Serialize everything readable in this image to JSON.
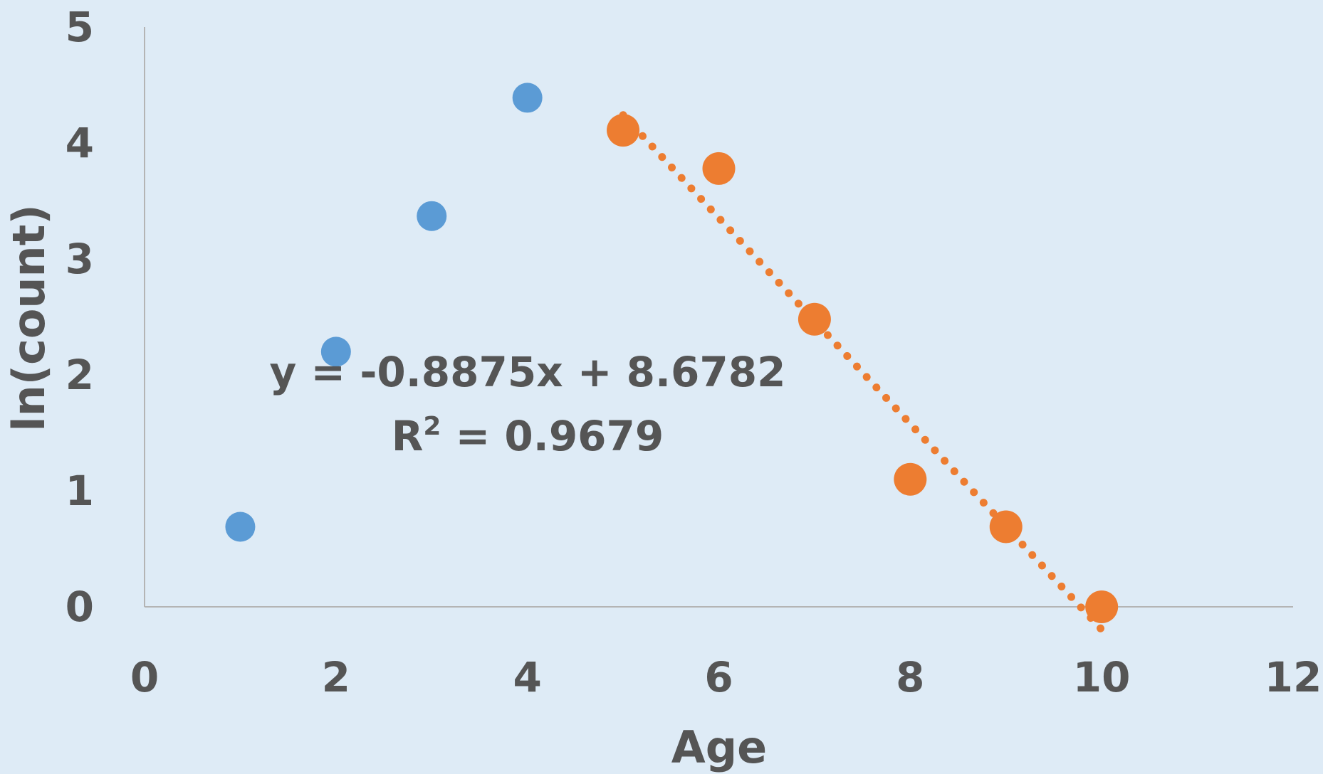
{
  "chart_data": {
    "type": "scatter",
    "xlabel": "Age",
    "ylabel": "ln(count)",
    "xlim": [
      0,
      12
    ],
    "ylim": [
      0,
      5
    ],
    "xticks": [
      "0",
      "2",
      "4",
      "6",
      "8",
      "10",
      "12"
    ],
    "yticks": [
      "0",
      "1",
      "2",
      "3",
      "4",
      "5"
    ],
    "grid": false,
    "series": [
      {
        "color": "#5b9bd5",
        "x": [
          1,
          2,
          3,
          4
        ],
        "y": [
          0.69,
          2.2,
          3.37,
          4.39
        ]
      },
      {
        "color": "#ed7d31",
        "x": [
          5,
          6,
          7,
          8,
          9,
          10
        ],
        "y": [
          4.11,
          3.78,
          2.48,
          1.1,
          0.69,
          0.0
        ]
      }
    ],
    "trendline": {
      "series_index": 1,
      "style": "dotted",
      "color": "#ed7d31",
      "slope": -0.8875,
      "intercept": 8.6782,
      "x_range": [
        5,
        10
      ],
      "equation_line1": "y = -0.8875x + 8.6782",
      "equation_line2_prefix": "R",
      "equation_line2_sup": "2",
      "equation_line2_suffix": " = 0.9679"
    },
    "colors": {
      "background": "#deebf6",
      "axis": "#b4b4b4",
      "text": "#555555"
    }
  }
}
